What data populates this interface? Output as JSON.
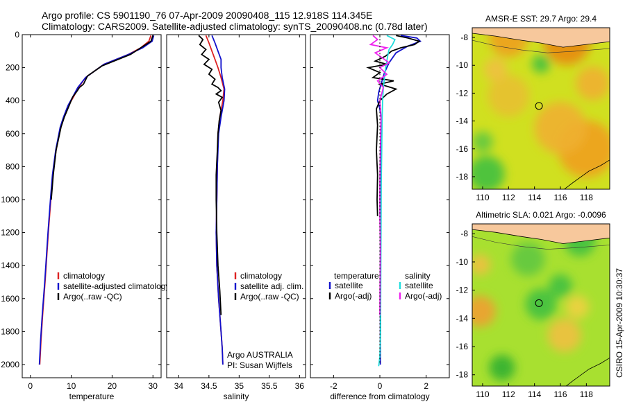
{
  "title": {
    "line1": "Argo profile: CS 5901190_76 07-Apr-2009 20090408_115 12.918S 114.345E",
    "line2": "Climatology: CARS2009. Satellite-adjusted climatology: synTS_20090408.nc (0.78d later)"
  },
  "side_label": "CSIRO 15-Apr-2009 10:30:37",
  "chart_data": [
    {
      "id": "temperature",
      "type": "line",
      "xlabel": "temperature",
      "ylabel": "",
      "xlim": [
        -2,
        32
      ],
      "ylim": [
        2080,
        0
      ],
      "xticks": [
        0,
        10,
        20,
        30
      ],
      "xtick_labels": [
        "0",
        "10",
        "20",
        "30"
      ],
      "yticks": [
        0,
        200,
        400,
        600,
        800,
        1000,
        1200,
        1400,
        1600,
        1800,
        2000
      ],
      "ytick_labels": [
        "0",
        "200",
        "400",
        "600",
        "800",
        "1000",
        "1200",
        "1400",
        "1600",
        "1800",
        "2000"
      ],
      "legend": [
        "climatology",
        "satellite-adjusted climatology",
        "Argo(..raw -QC)"
      ],
      "series": [
        {
          "name": "climatology",
          "color": "#dd2222",
          "x": [
            29.5,
            29,
            27,
            24,
            18,
            13.5,
            11.8,
            10.5,
            9.3,
            8.2,
            7.4,
            6.3,
            5.5,
            5.0,
            4.4,
            3.6,
            3.0,
            2.6,
            2.3
          ],
          "y": [
            5,
            40,
            80,
            120,
            180,
            260,
            320,
            380,
            430,
            500,
            560,
            700,
            850,
            1000,
            1200,
            1500,
            1700,
            1850,
            2000
          ]
        },
        {
          "name": "satellite-adjusted climatology",
          "color": "#1111cc",
          "x": [
            30.2,
            29.8,
            27.5,
            24,
            18,
            13.5,
            11.6,
            10.3,
            9.2,
            8.1,
            7.3,
            6.2,
            5.4,
            4.9,
            4.3,
            3.5,
            2.9,
            2.5,
            2.2
          ],
          "y": [
            5,
            40,
            80,
            120,
            180,
            260,
            320,
            380,
            430,
            500,
            560,
            700,
            850,
            1000,
            1200,
            1500,
            1700,
            1850,
            2000
          ]
        },
        {
          "name": "Argo(..raw -QC)",
          "color": "#000000",
          "x": [
            30,
            29.5,
            27,
            24.5,
            17.5,
            14,
            13,
            12,
            11.5,
            10.3,
            9.5,
            8.3,
            7.5,
            6.3,
            5.6,
            5.1
          ],
          "y": [
            5,
            40,
            80,
            120,
            190,
            250,
            300,
            320,
            340,
            380,
            430,
            500,
            560,
            700,
            850,
            1000
          ]
        }
      ]
    },
    {
      "id": "salinity",
      "type": "line",
      "xlabel": "salinity",
      "ylabel": "",
      "xlim": [
        33.8,
        36.1
      ],
      "ylim": [
        2080,
        0
      ],
      "xticks": [
        34,
        34.5,
        35,
        35.5,
        36
      ],
      "xtick_labels": [
        "34",
        "34.5",
        "35",
        "35.5",
        "36"
      ],
      "legend": [
        "climatology",
        "satellite adj. clim.",
        "Argo(..raw -QC)"
      ],
      "annotation": [
        "Argo AUSTRALIA",
        "PI: Susan Wijffels"
      ],
      "series": [
        {
          "name": "climatology",
          "color": "#dd2222",
          "x": [
            34.45,
            34.5,
            34.55,
            34.6,
            34.65,
            34.7,
            34.75,
            34.73,
            34.68,
            34.65,
            34.64,
            34.63,
            34.62,
            34.63,
            34.66,
            34.7,
            34.72,
            34.73
          ],
          "y": [
            5,
            50,
            100,
            150,
            200,
            260,
            330,
            400,
            500,
            600,
            800,
            1000,
            1200,
            1400,
            1600,
            1800,
            1900,
            2000
          ]
        },
        {
          "name": "satellite adj. clim.",
          "color": "#1111cc",
          "x": [
            34.55,
            34.6,
            34.65,
            34.7,
            34.7,
            34.72,
            34.76,
            34.75,
            34.7,
            34.66,
            34.64,
            34.63,
            34.62,
            34.63,
            34.66,
            34.7,
            34.72,
            34.73
          ],
          "y": [
            5,
            50,
            100,
            150,
            200,
            260,
            330,
            400,
            500,
            600,
            800,
            1000,
            1200,
            1400,
            1600,
            1800,
            1900,
            2000
          ]
        },
        {
          "name": "Argo(..raw -QC)",
          "color": "#000000",
          "x": [
            34.33,
            34.4,
            34.35,
            34.45,
            34.38,
            34.5,
            34.42,
            34.55,
            34.5,
            34.6,
            34.55,
            34.65,
            34.7,
            34.62,
            34.72,
            34.66,
            34.7,
            34.67,
            34.65,
            34.64,
            34.62,
            34.62,
            34.63,
            34.65,
            34.68,
            34.7
          ],
          "y": [
            5,
            30,
            60,
            90,
            120,
            150,
            180,
            210,
            240,
            270,
            300,
            320,
            340,
            360,
            380,
            410,
            460,
            520,
            600,
            700,
            850,
            1000,
            1200,
            1400,
            1550,
            1700
          ]
        }
      ]
    },
    {
      "id": "difference",
      "type": "line",
      "xlabel": "difference from climatology",
      "ylabel": "",
      "xlim": [
        -3,
        3
      ],
      "ylim": [
        2080,
        0
      ],
      "xticks": [
        -2,
        0,
        2
      ],
      "xtick_labels": [
        "-2",
        "0",
        "2"
      ],
      "legend_left_title": "temperature",
      "legend_right_title": "salinity",
      "legend_left": [
        "satellite",
        "Argo(-adj)"
      ],
      "legend_right": [
        "satellite",
        "Argo(-adj)"
      ],
      "series": [
        {
          "name": "temperature satellite",
          "color": "#1111cc",
          "x": [
            0.9,
            1.6,
            1.75,
            1.2,
            0.7,
            0.4,
            0.2,
            0.05,
            -0.05,
            -0.1,
            0.0,
            0.05,
            0.08,
            0.05,
            0.03,
            0.02,
            0.02
          ],
          "y": [
            5,
            20,
            40,
            70,
            110,
            170,
            230,
            300,
            350,
            400,
            450,
            500,
            600,
            800,
            1000,
            1500,
            2000
          ]
        },
        {
          "name": "temperature Argo(-adj)",
          "color": "#000000",
          "x": [
            0.7,
            1.2,
            1.7,
            1.5,
            0.9,
            0.5,
            0.25,
            -0.2,
            0.3,
            -0.5,
            0.0,
            -0.3,
            0.6,
            0.0,
            0.7,
            0.3,
            0.0,
            -0.15,
            -0.1,
            -0.15,
            -0.1,
            -0.12,
            -0.1
          ],
          "y": [
            5,
            20,
            40,
            60,
            80,
            100,
            130,
            160,
            180,
            200,
            230,
            260,
            280,
            300,
            330,
            360,
            400,
            450,
            550,
            700,
            850,
            1000,
            1100
          ]
        },
        {
          "name": "salinity satellite",
          "color": "#22dddd",
          "x": [
            0.3,
            0.65,
            0.55,
            0.4,
            0.35,
            0.3,
            0.25,
            0.2,
            0.15,
            0.12,
            0.1,
            0.08,
            0.06,
            0.05,
            0.04,
            0.03,
            0.0,
            -0.05
          ],
          "y": [
            5,
            30,
            60,
            90,
            120,
            160,
            200,
            260,
            320,
            400,
            500,
            700,
            900,
            1200,
            1500,
            1800,
            1950,
            2010
          ]
        },
        {
          "name": "salinity Argo(-adj)",
          "color": "#ee22ee",
          "x": [
            -0.3,
            -0.1,
            -0.4,
            0.3,
            -0.2,
            0.1,
            0.4,
            0.0,
            0.3,
            -0.1,
            0.15,
            0.0,
            0.05,
            0.02,
            0.0,
            0.0,
            0.02,
            0.01,
            0.0
          ],
          "y": [
            5,
            30,
            60,
            80,
            110,
            140,
            170,
            200,
            240,
            280,
            320,
            400,
            500,
            700,
            900,
            1100,
            1300,
            1500,
            1700
          ]
        },
        {
          "name": "zero line",
          "color": "#000000",
          "x": [
            0,
            0
          ],
          "y": [
            5,
            2000
          ]
        }
      ]
    },
    {
      "id": "sst_map",
      "type": "heatmap",
      "title": "AMSR-E SST: 29.7 Argo: 29.4",
      "xlim": [
        109.2,
        119.8
      ],
      "ylim": [
        -18.9,
        -7.3
      ],
      "xticks": [
        110,
        112,
        114,
        116,
        118
      ],
      "xtick_labels": [
        "110",
        "112",
        "114",
        "116",
        "118"
      ],
      "yticks": [
        -8,
        -10,
        -12,
        -14,
        -16,
        -18
      ],
      "ytick_labels": [
        "-8",
        "-10",
        "-12",
        "-14",
        "-16",
        "-18"
      ],
      "float_position": [
        114.345,
        -12.918
      ],
      "background_color": "#d0e020",
      "land_color": "#f7c89c",
      "blobs": [
        {
          "lon": 118,
          "lat": -16,
          "r": 2.2,
          "color": "#f0a020"
        },
        {
          "lon": 116,
          "lat": -14.5,
          "r": 2.0,
          "color": "#f0b030"
        },
        {
          "lon": 112,
          "lat": -12.2,
          "r": 1.6,
          "color": "#e8c030"
        },
        {
          "lon": 110.3,
          "lat": -17.8,
          "r": 1.4,
          "color": "#40c040"
        },
        {
          "lon": 110,
          "lat": -15.5,
          "r": 0.8,
          "color": "#60c840"
        },
        {
          "lon": 114.5,
          "lat": -9.9,
          "r": 0.7,
          "color": "#40c040"
        },
        {
          "lon": 111,
          "lat": -10.3,
          "r": 0.9,
          "color": "#f0c040"
        },
        {
          "lon": 118.5,
          "lat": -11.3,
          "r": 1.3,
          "color": "#f0b030"
        },
        {
          "lon": 116.5,
          "lat": -8.3,
          "r": 1.8,
          "color": "#e88a10"
        },
        {
          "lon": 112,
          "lat": -8.0,
          "r": 1.5,
          "color": "#eea020"
        }
      ]
    },
    {
      "id": "sla_map",
      "type": "heatmap",
      "title": "Altimetric SLA: 0.021 Argo: -0.0096",
      "xlim": [
        109.2,
        119.8
      ],
      "ylim": [
        -18.8,
        -7.3
      ],
      "xticks": [
        110,
        112,
        114,
        116,
        118
      ],
      "xtick_labels": [
        "110",
        "112",
        "114",
        "116",
        "118"
      ],
      "yticks": [
        -8,
        -10,
        -12,
        -14,
        -16,
        -18
      ],
      "ytick_labels": [
        "-8",
        "-10",
        "-12",
        "-14",
        "-16",
        "-18"
      ],
      "float_position": [
        114.345,
        -12.918
      ],
      "background_color": "#a8e030",
      "land_color": "#f7c89c",
      "blobs": [
        {
          "lon": 109.8,
          "lat": -13.5,
          "r": 1.2,
          "color": "#f0a030"
        },
        {
          "lon": 109.8,
          "lat": -10.2,
          "r": 0.8,
          "color": "#f0c040"
        },
        {
          "lon": 116.3,
          "lat": -15.2,
          "r": 1.3,
          "color": "#f0c040"
        },
        {
          "lon": 114.5,
          "lat": -13.0,
          "r": 1.2,
          "color": "#40c040"
        },
        {
          "lon": 116,
          "lat": -11.7,
          "r": 0.9,
          "color": "#40c040"
        },
        {
          "lon": 111.5,
          "lat": -17.5,
          "r": 1.0,
          "color": "#30b030"
        },
        {
          "lon": 113.5,
          "lat": -9.8,
          "r": 1.3,
          "color": "#60c840"
        },
        {
          "lon": 117.5,
          "lat": -8.5,
          "r": 1.2,
          "color": "#40c040"
        },
        {
          "lon": 117.3,
          "lat": -13.2,
          "r": 0.9,
          "color": "#f0d040"
        }
      ]
    }
  ]
}
